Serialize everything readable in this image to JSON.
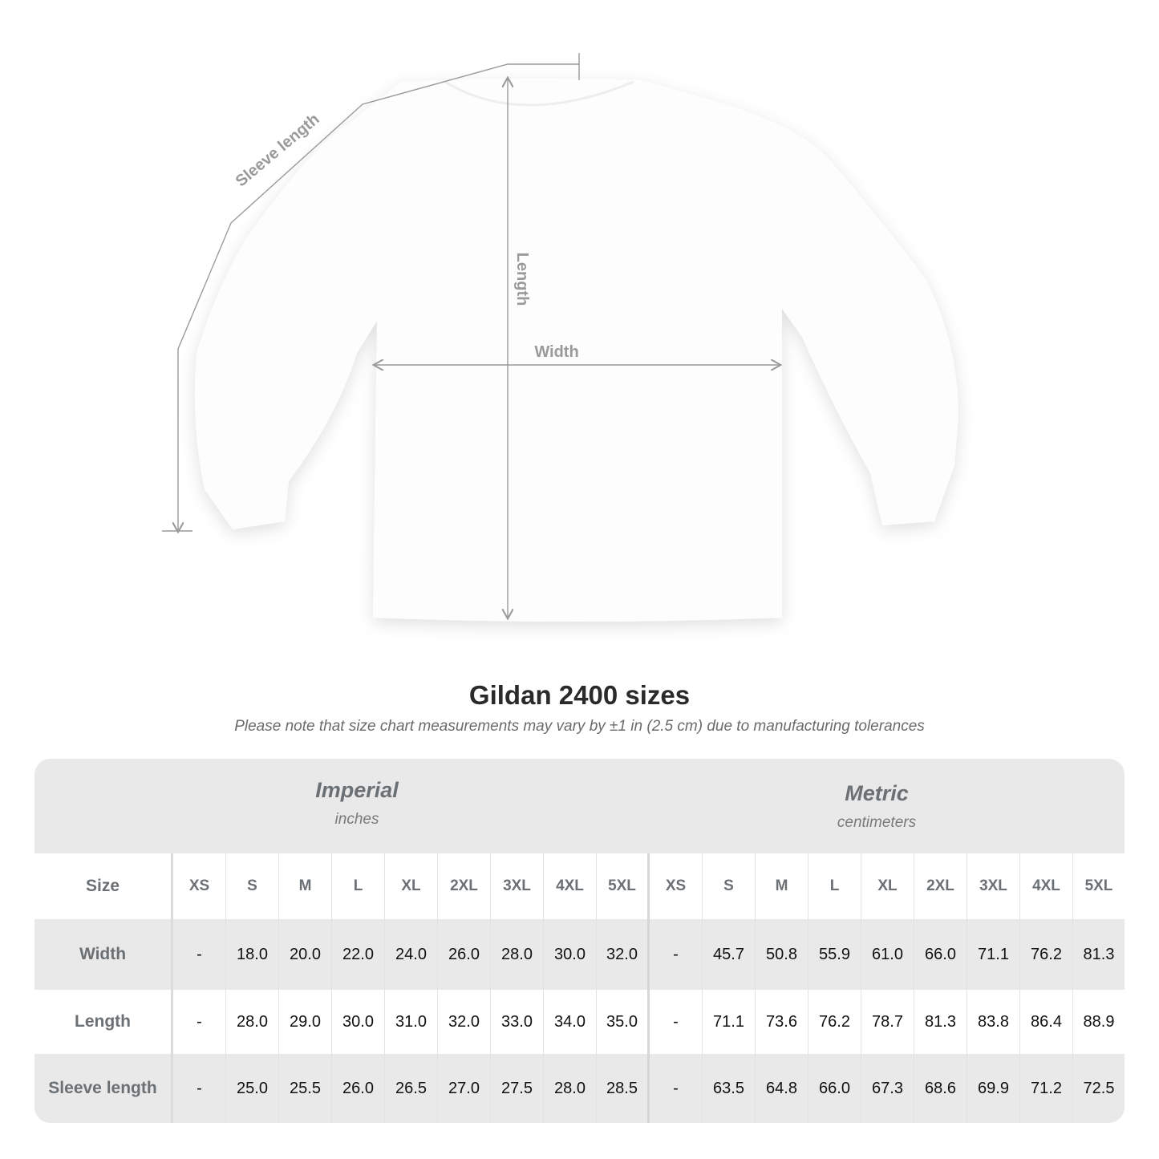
{
  "diagram": {
    "labels": {
      "sleeve": "Sleeve length",
      "length": "Length",
      "width": "Width"
    },
    "line_color": "#9a9a9a"
  },
  "title": "Gildan 2400 sizes",
  "note": "Please note that size chart measurements may vary by ±1 in (2.5 cm) due to manufacturing tolerances",
  "table": {
    "imperial": {
      "name": "Imperial",
      "unit": "inches"
    },
    "metric": {
      "name": "Metric",
      "unit": "centimeters"
    },
    "size_label": "Size",
    "sizes": [
      "XS",
      "S",
      "M",
      "L",
      "XL",
      "2XL",
      "3XL",
      "4XL",
      "5XL"
    ],
    "rows": [
      {
        "label": "Width",
        "imperial": [
          "-",
          "18.0",
          "20.0",
          "22.0",
          "24.0",
          "26.0",
          "28.0",
          "30.0",
          "32.0"
        ],
        "metric": [
          "-",
          "45.7",
          "50.8",
          "55.9",
          "61.0",
          "66.0",
          "71.1",
          "76.2",
          "81.3"
        ]
      },
      {
        "label": "Length",
        "imperial": [
          "-",
          "28.0",
          "29.0",
          "30.0",
          "31.0",
          "32.0",
          "33.0",
          "34.0",
          "35.0"
        ],
        "metric": [
          "-",
          "71.1",
          "73.6",
          "76.2",
          "78.7",
          "81.3",
          "83.8",
          "86.4",
          "88.9"
        ]
      },
      {
        "label": "Sleeve length",
        "imperial": [
          "-",
          "25.0",
          "25.5",
          "26.0",
          "26.5",
          "27.0",
          "27.5",
          "28.0",
          "28.5"
        ],
        "metric": [
          "-",
          "63.5",
          "64.8",
          "66.0",
          "67.3",
          "68.6",
          "69.9",
          "71.2",
          "72.5"
        ]
      }
    ],
    "colors": {
      "band": "#e9e9e9",
      "header_text": "#6b7074"
    }
  }
}
